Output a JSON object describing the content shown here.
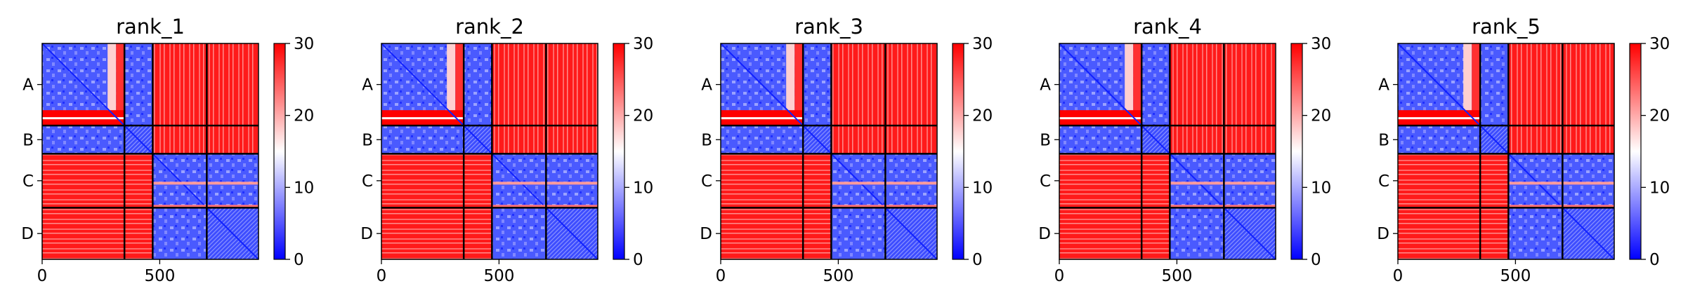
{
  "chart_data": [
    {
      "type": "heatmap",
      "title": "rank_1",
      "x_ticks": [
        0,
        500
      ],
      "xlim": [
        0,
        920
      ],
      "y_ticks": [
        "A",
        "B",
        "C",
        "D"
      ],
      "chain_boundaries": [
        350,
        470,
        700
      ],
      "colorbar": {
        "ticks": [
          0,
          10,
          20,
          30
        ],
        "range": [
          0,
          30
        ],
        "colors": [
          "#0000ff",
          "#ffffff",
          "#ff0000"
        ]
      }
    },
    {
      "type": "heatmap",
      "title": "rank_2",
      "x_ticks": [
        0,
        500
      ],
      "xlim": [
        0,
        920
      ],
      "y_ticks": [
        "A",
        "B",
        "C",
        "D"
      ],
      "chain_boundaries": [
        350,
        470,
        700
      ],
      "colorbar": {
        "ticks": [
          0,
          10,
          20,
          30
        ],
        "range": [
          0,
          30
        ],
        "colors": [
          "#0000ff",
          "#ffffff",
          "#ff0000"
        ]
      }
    },
    {
      "type": "heatmap",
      "title": "rank_3",
      "x_ticks": [
        0,
        500
      ],
      "xlim": [
        0,
        920
      ],
      "y_ticks": [
        "A",
        "B",
        "C",
        "D"
      ],
      "chain_boundaries": [
        350,
        470,
        700
      ],
      "colorbar": {
        "ticks": [
          0,
          10,
          20,
          30
        ],
        "range": [
          0,
          30
        ],
        "colors": [
          "#0000ff",
          "#ffffff",
          "#ff0000"
        ]
      }
    },
    {
      "type": "heatmap",
      "title": "rank_4",
      "x_ticks": [
        0,
        500
      ],
      "xlim": [
        0,
        920
      ],
      "y_ticks": [
        "A",
        "B",
        "C",
        "D"
      ],
      "chain_boundaries": [
        350,
        470,
        700
      ],
      "colorbar": {
        "ticks": [
          0,
          10,
          20,
          30
        ],
        "range": [
          0,
          30
        ],
        "colors": [
          "#0000ff",
          "#ffffff",
          "#ff0000"
        ]
      }
    },
    {
      "type": "heatmap",
      "title": "rank_5",
      "x_ticks": [
        0,
        500
      ],
      "xlim": [
        0,
        920
      ],
      "y_ticks": [
        "A",
        "B",
        "C",
        "D"
      ],
      "chain_boundaries": [
        350,
        470,
        700
      ],
      "colorbar": {
        "ticks": [
          0,
          10,
          20,
          30
        ],
        "range": [
          0,
          30
        ],
        "colors": [
          "#0000ff",
          "#ffffff",
          "#ff0000"
        ]
      }
    }
  ]
}
